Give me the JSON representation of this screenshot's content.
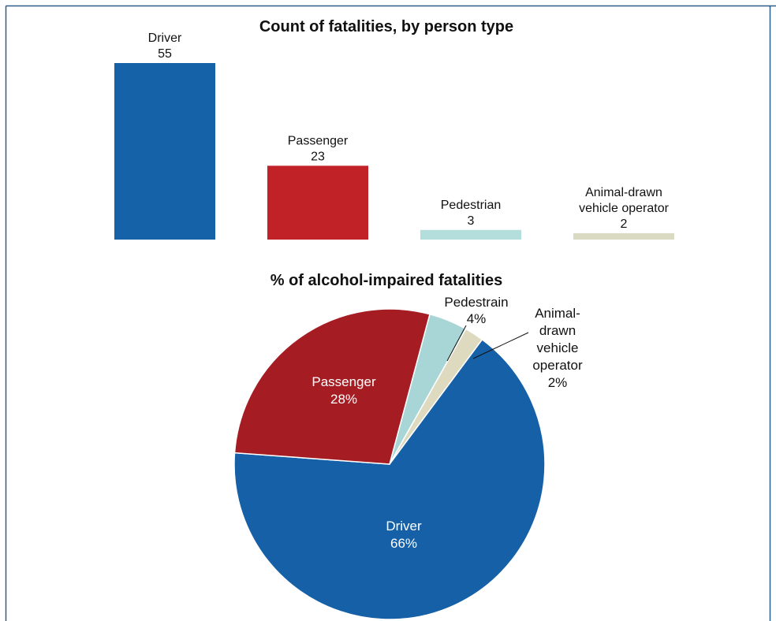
{
  "chart_data": [
    {
      "type": "bar",
      "title": "Count of fatalities, by person type",
      "xlabel": "",
      "ylabel": "",
      "ylim": [
        0,
        55
      ],
      "grid": false,
      "categories": [
        "Driver",
        "Passenger",
        "Pedestrian",
        "Animal-drawn vehicle operator"
      ],
      "category_label_lines": [
        [
          "Driver"
        ],
        [
          "Passenger"
        ],
        [
          "Pedestrian"
        ],
        [
          "Animal-drawn",
          "vehicle operator"
        ]
      ],
      "values": [
        55,
        23,
        3,
        2
      ],
      "value_labels": [
        "55",
        "23",
        "3",
        "2"
      ],
      "colors": [
        "#1562a8",
        "#c12228",
        "#b4dedc",
        "#dad9c1"
      ]
    },
    {
      "type": "pie",
      "title": "% of alcohol-impaired fatalities",
      "start": "top, clockwise from Pedestrain",
      "slices": [
        {
          "label": "Pedestrain",
          "value": 4,
          "value_label": "4%",
          "label_lines": [
            "Pedestrain"
          ],
          "color": "#a8d5d5",
          "label_placement": "outside"
        },
        {
          "label": "Animal-drawn vehicle operator",
          "value": 2,
          "value_label": "2%",
          "label_lines": [
            "Animal-",
            "drawn",
            "vehicle",
            "operator"
          ],
          "color": "#dedac0",
          "label_placement": "outside"
        },
        {
          "label": "Driver",
          "value": 66,
          "value_label": "66%",
          "label_lines": [
            "Driver"
          ],
          "color": "#1560a6",
          "label_placement": "inside"
        },
        {
          "label": "Passenger",
          "value": 28,
          "value_label": "28%",
          "label_lines": [
            "Passenger"
          ],
          "color": "#a51d23",
          "label_placement": "inside"
        }
      ]
    }
  ]
}
